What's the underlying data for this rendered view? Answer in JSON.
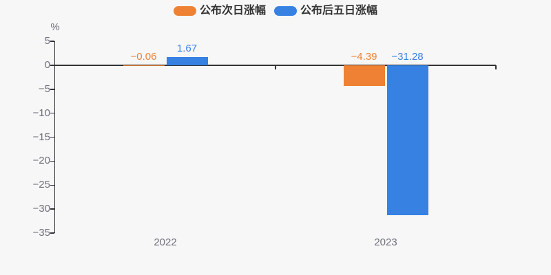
{
  "page": {
    "background": "#f7f7f8",
    "axis_color": "#333333",
    "axis_label_color": "#6e7079",
    "legend_text_color": "#333333"
  },
  "chart_data": {
    "type": "bar",
    "title": "",
    "categories": [
      "2022",
      "2023"
    ],
    "series": [
      {
        "name": "公布次日涨幅",
        "color": "#ee8133",
        "values": [
          -0.06,
          -4.39
        ],
        "data_labels": [
          "−0.06",
          "−4.39"
        ]
      },
      {
        "name": "公布后五日涨幅",
        "color": "#3781e3",
        "values": [
          1.67,
          -31.28
        ],
        "data_labels": [
          "1.67",
          "−31.28"
        ]
      }
    ],
    "xlabel": "",
    "ylabel": "%",
    "ylim": [
      -35,
      5
    ],
    "ytick_values": [
      5,
      0,
      -5,
      -10,
      -15,
      -20,
      -25,
      -30,
      -35
    ],
    "ytick_labels": [
      "5",
      "0",
      "−5",
      "−10",
      "−15",
      "−20",
      "−25",
      "−30",
      "−35"
    ],
    "legend_position": "top",
    "grid": false,
    "value_labels_shown": true
  }
}
